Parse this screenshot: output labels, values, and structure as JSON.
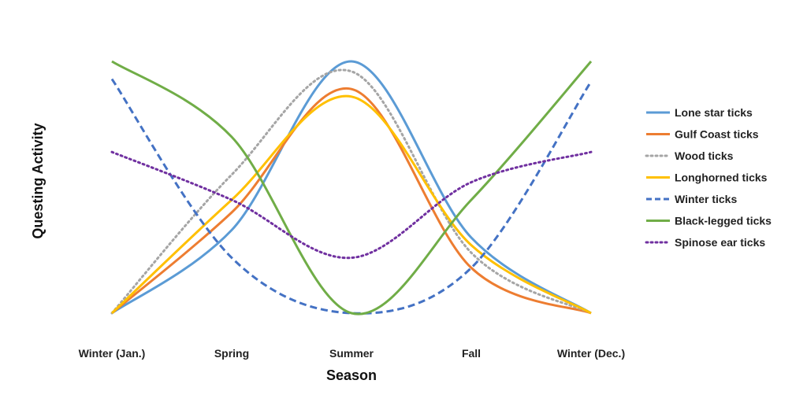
{
  "chart_data": {
    "type": "line",
    "categories": [
      "Winter (Jan.)",
      "Spring",
      "Summer",
      "Fall",
      "Winter (Dec.)"
    ],
    "xlabel": "Season",
    "ylabel": "Questing Activity",
    "ylim": [
      0,
      100
    ],
    "grid": false,
    "legend_position": "right",
    "series": [
      {
        "name": "Lone star ticks",
        "color": "#5b9bd5",
        "dash": "solid",
        "values": [
          0,
          33,
          100,
          30,
          0
        ]
      },
      {
        "name": "Gulf Coast ticks",
        "color": "#ed7d31",
        "dash": "solid",
        "values": [
          0,
          40,
          89,
          18,
          0
        ]
      },
      {
        "name": "Wood ticks",
        "color": "#a5a5a5",
        "dash": "dotted",
        "values": [
          0,
          55,
          96,
          24,
          0
        ]
      },
      {
        "name": "Longhorned ticks",
        "color": "#ffc000",
        "dash": "solid",
        "values": [
          0,
          45,
          86,
          27,
          0
        ]
      },
      {
        "name": "Winter ticks",
        "color": "#4472c4",
        "dash": "dashed",
        "values": [
          93,
          22,
          0,
          18,
          92
        ]
      },
      {
        "name": "Black-legged ticks",
        "color": "#70ad47",
        "dash": "solid",
        "values": [
          100,
          70,
          0,
          45,
          100
        ]
      },
      {
        "name": "Spinose ear ticks",
        "color": "#7030a0",
        "dash": "dotted",
        "values": [
          64,
          45,
          22,
          52,
          64
        ]
      }
    ]
  }
}
